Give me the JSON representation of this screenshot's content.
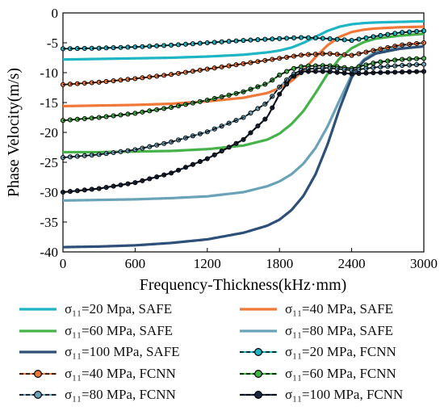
{
  "chart_data": {
    "type": "line",
    "xlabel": "Frequency-Thickness(kHz·mm)",
    "ylabel": "Phase Velocity(m/s)",
    "xlim": [
      0,
      3000
    ],
    "ylim": [
      -40,
      0
    ],
    "xticks": [
      0,
      600,
      1200,
      1800,
      2400,
      3000
    ],
    "xtick_labels": [
      "0",
      "600",
      "1200",
      "1800",
      "2400",
      "3000"
    ],
    "yticks": [
      0,
      -5,
      -10,
      -15,
      -20,
      -25,
      -30,
      -35,
      -40
    ],
    "ytick_labels": [
      "0",
      "-5",
      "-10",
      "-15",
      "-20",
      "-25",
      "-30",
      "-35",
      "-40"
    ],
    "grid": false,
    "legend_position": "bottom",
    "series": [
      {
        "name": "σ₁₁=20 Mpa, SAFE",
        "method": "SAFE",
        "color": "#1fb5c4",
        "x": [
          0,
          300,
          600,
          900,
          1200,
          1500,
          1700,
          1800,
          1900,
          2000,
          2100,
          2200,
          2300,
          2400,
          2500,
          2600,
          2800,
          3000
        ],
        "y": [
          -7.8,
          -7.7,
          -7.6,
          -7.5,
          -7.3,
          -7.0,
          -6.6,
          -6.3,
          -5.8,
          -5.0,
          -4.0,
          -3.0,
          -2.3,
          -1.9,
          -1.7,
          -1.6,
          -1.5,
          -1.4
        ]
      },
      {
        "name": "σ₁₁=40 MPa, SAFE",
        "method": "SAFE",
        "color": "#f07838",
        "x": [
          0,
          300,
          600,
          900,
          1200,
          1500,
          1700,
          1800,
          1900,
          2000,
          2100,
          2200,
          2300,
          2400,
          2500,
          2600,
          2800,
          3000
        ],
        "y": [
          -15.6,
          -15.5,
          -15.4,
          -15.2,
          -14.8,
          -14.2,
          -13.4,
          -12.6,
          -11.4,
          -9.6,
          -7.4,
          -5.4,
          -4.0,
          -3.2,
          -2.8,
          -2.6,
          -2.4,
          -2.3
        ]
      },
      {
        "name": "σ₁₁=60 MPa, SAFE",
        "method": "SAFE",
        "color": "#45b34a",
        "x": [
          0,
          300,
          600,
          900,
          1200,
          1500,
          1700,
          1800,
          1900,
          2000,
          2100,
          2200,
          2300,
          2400,
          2500,
          2600,
          2800,
          3000
        ],
        "y": [
          -23.3,
          -23.3,
          -23.2,
          -23.1,
          -22.8,
          -22.2,
          -21.2,
          -20.2,
          -18.6,
          -16.4,
          -13.4,
          -10.2,
          -7.6,
          -5.9,
          -4.9,
          -4.3,
          -3.8,
          -3.5
        ]
      },
      {
        "name": "σ₁₁=80 MPa, SAFE",
        "method": "SAFE",
        "color": "#6aa3b8",
        "x": [
          0,
          300,
          600,
          900,
          1200,
          1500,
          1700,
          1800,
          1900,
          2000,
          2100,
          2200,
          2300,
          2400,
          2500,
          2600,
          2800,
          3000
        ],
        "y": [
          -31.4,
          -31.3,
          -31.2,
          -31.0,
          -30.7,
          -30.0,
          -29.0,
          -28.2,
          -27.0,
          -25.2,
          -22.6,
          -19.0,
          -14.6,
          -10.4,
          -7.8,
          -6.5,
          -5.5,
          -5.0
        ]
      },
      {
        "name": "σ₁₁=100 MPa, SAFE",
        "method": "SAFE",
        "color": "#2e5078",
        "x": [
          0,
          300,
          600,
          900,
          1200,
          1500,
          1700,
          1800,
          1900,
          2000,
          2100,
          2200,
          2300,
          2400,
          2500,
          2600,
          2800,
          3000
        ],
        "y": [
          -39.2,
          -39.1,
          -38.9,
          -38.5,
          -37.9,
          -36.8,
          -35.6,
          -34.6,
          -33.0,
          -30.6,
          -27.0,
          -22.0,
          -16.0,
          -10.8,
          -8.0,
          -6.8,
          -6.0,
          -5.6
        ]
      },
      {
        "name": "σ₁₁=20 MPa, FCNN",
        "method": "FCNN",
        "color": "#1fb5c4",
        "x": [
          0,
          300,
          600,
          900,
          1200,
          1500,
          1800,
          2000,
          2200,
          2400,
          2600,
          2800,
          3000
        ],
        "y": [
          -6.0,
          -5.9,
          -5.7,
          -5.4,
          -5.0,
          -4.6,
          -4.3,
          -4.1,
          -4.3,
          -4.6,
          -3.9,
          -3.3,
          -3.0
        ]
      },
      {
        "name": "σ₁₁=40 MPa, FCNN",
        "method": "FCNN",
        "color": "#f07838",
        "x": [
          0,
          300,
          600,
          900,
          1200,
          1500,
          1800,
          2000,
          2200,
          2400,
          2600,
          2800,
          3000
        ],
        "y": [
          -12.0,
          -11.6,
          -11.0,
          -10.3,
          -9.4,
          -8.5,
          -7.6,
          -7.0,
          -6.8,
          -7.1,
          -6.2,
          -5.4,
          -5.0
        ]
      },
      {
        "name": "σ₁₁=60 MPa, FCNN",
        "method": "FCNN",
        "color": "#45b34a",
        "x": [
          0,
          300,
          600,
          900,
          1200,
          1500,
          1700,
          1800,
          1900,
          2000,
          2200,
          2400,
          2600,
          2800,
          3000
        ],
        "y": [
          -18.0,
          -17.5,
          -16.8,
          -15.8,
          -14.6,
          -13.2,
          -11.8,
          -10.4,
          -9.4,
          -8.9,
          -8.8,
          -9.3,
          -8.3,
          -7.8,
          -7.6
        ]
      },
      {
        "name": "σ₁₁=80 MPa, FCNN",
        "method": "FCNN",
        "color": "#6aa3b8",
        "x": [
          0,
          300,
          600,
          900,
          1200,
          1500,
          1700,
          1800,
          1900,
          2000,
          2200,
          2400,
          2600,
          2800,
          3000
        ],
        "y": [
          -24.2,
          -23.7,
          -22.9,
          -21.6,
          -19.9,
          -17.5,
          -15.0,
          -12.4,
          -10.4,
          -9.4,
          -9.2,
          -9.6,
          -9.1,
          -8.8,
          -8.6
        ]
      },
      {
        "name": "σ₁₁=100 MPa, FCNN",
        "method": "FCNN",
        "color": "#1a2840",
        "x": [
          0,
          300,
          600,
          900,
          1200,
          1500,
          1700,
          1800,
          1900,
          2000,
          2200,
          2400,
          2600,
          2800,
          3000
        ],
        "y": [
          -30.0,
          -29.4,
          -28.4,
          -26.8,
          -24.4,
          -21.2,
          -17.4,
          -13.6,
          -10.8,
          -9.8,
          -9.8,
          -10.2,
          -10.0,
          -9.9,
          -9.8
        ]
      }
    ]
  }
}
